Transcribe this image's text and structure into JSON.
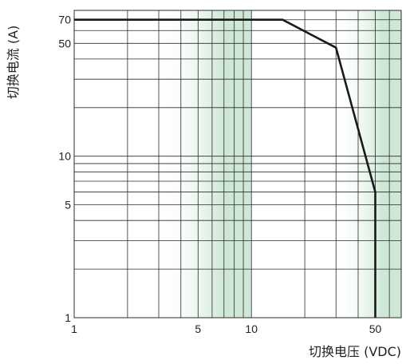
{
  "chart_data": {
    "type": "line",
    "title": "",
    "xlabel": "切换电压 (VDC)",
    "ylabel": "切换电流 (A)",
    "x_scale": "log",
    "y_scale": "log",
    "xlim": [
      1,
      70
    ],
    "ylim": [
      1,
      80
    ],
    "x_tick_labels": [
      {
        "value": 1,
        "label": "1"
      },
      {
        "value": 5,
        "label": "5"
      },
      {
        "value": 10,
        "label": "10"
      },
      {
        "value": 50,
        "label": "50"
      }
    ],
    "y_tick_labels": [
      {
        "value": 1,
        "label": "1"
      },
      {
        "value": 5,
        "label": "5"
      },
      {
        "value": 10,
        "label": "10"
      },
      {
        "value": 50,
        "label": "50"
      },
      {
        "value": 70,
        "label": "70"
      }
    ],
    "grid": true,
    "line_color": "#1a1a1a",
    "grid_color": "#2a2a2a",
    "band_color": "#cfe8d6",
    "series": [
      {
        "points": [
          {
            "x": 1,
            "y": 70
          },
          {
            "x": 15,
            "y": 70
          },
          {
            "x": 30,
            "y": 47
          },
          {
            "x": 50,
            "y": 6
          },
          {
            "x": 50,
            "y": 1
          }
        ]
      }
    ]
  }
}
